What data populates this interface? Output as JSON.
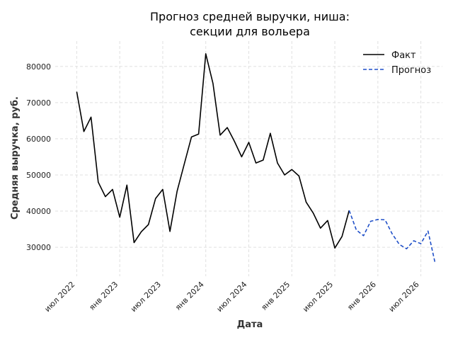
{
  "chart_data": {
    "type": "line",
    "title_lines": [
      "Прогноз средней выручки, ниша:",
      "секции для вольера"
    ],
    "xlabel": "Дата",
    "ylabel": "Средняя выручка, руб.",
    "x_ticks": [
      {
        "date": "2022-07-01",
        "label": "июл 2022"
      },
      {
        "date": "2023-01-01",
        "label": "янв 2023"
      },
      {
        "date": "2023-07-01",
        "label": "июл 2023"
      },
      {
        "date": "2024-01-01",
        "label": "янв 2024"
      },
      {
        "date": "2024-07-01",
        "label": "июл 2024"
      },
      {
        "date": "2025-01-01",
        "label": "янв 2025"
      },
      {
        "date": "2025-07-01",
        "label": "июл 2025"
      },
      {
        "date": "2026-01-01",
        "label": "янв 2026"
      },
      {
        "date": "2026-07-01",
        "label": "июл 2026"
      }
    ],
    "y_ticks": [
      {
        "value": 30000,
        "label": "30000"
      },
      {
        "value": 40000,
        "label": "40000"
      },
      {
        "value": 50000,
        "label": "50000"
      },
      {
        "value": 60000,
        "label": "60000"
      },
      {
        "value": 70000,
        "label": "70000"
      },
      {
        "value": 80000,
        "label": "80000"
      }
    ],
    "xlim": [
      "2022-04-01",
      "2026-10-01"
    ],
    "ylim": [
      22000,
      87000
    ],
    "grid": true,
    "legend_position": "top-right",
    "series": [
      {
        "name": "Факт",
        "color": "#000000",
        "style": "solid",
        "points": [
          {
            "x": "2022-07-01",
            "y": 73000
          },
          {
            "x": "2022-08-01",
            "y": 62000
          },
          {
            "x": "2022-09-01",
            "y": 66000
          },
          {
            "x": "2022-10-01",
            "y": 48000
          },
          {
            "x": "2022-11-01",
            "y": 44000
          },
          {
            "x": "2022-12-01",
            "y": 46000
          },
          {
            "x": "2023-01-01",
            "y": 38300
          },
          {
            "x": "2023-02-01",
            "y": 47200
          },
          {
            "x": "2023-03-01",
            "y": 31300
          },
          {
            "x": "2023-04-01",
            "y": 34300
          },
          {
            "x": "2023-05-01",
            "y": 36300
          },
          {
            "x": "2023-06-01",
            "y": 43500
          },
          {
            "x": "2023-07-01",
            "y": 46000
          },
          {
            "x": "2023-08-01",
            "y": 34400
          },
          {
            "x": "2023-09-01",
            "y": 45500
          },
          {
            "x": "2023-10-01",
            "y": 53000
          },
          {
            "x": "2023-11-01",
            "y": 60500
          },
          {
            "x": "2023-12-01",
            "y": 61300
          },
          {
            "x": "2024-01-01",
            "y": 83500
          },
          {
            "x": "2024-02-01",
            "y": 75300
          },
          {
            "x": "2024-03-01",
            "y": 61000
          },
          {
            "x": "2024-04-01",
            "y": 63100
          },
          {
            "x": "2024-05-01",
            "y": 59300
          },
          {
            "x": "2024-06-01",
            "y": 55000
          },
          {
            "x": "2024-07-01",
            "y": 59000
          },
          {
            "x": "2024-08-01",
            "y": 53300
          },
          {
            "x": "2024-09-01",
            "y": 54100
          },
          {
            "x": "2024-10-01",
            "y": 61500
          },
          {
            "x": "2024-11-01",
            "y": 53300
          },
          {
            "x": "2024-12-01",
            "y": 50000
          },
          {
            "x": "2025-01-01",
            "y": 51500
          },
          {
            "x": "2025-02-01",
            "y": 49700
          },
          {
            "x": "2025-03-01",
            "y": 42500
          },
          {
            "x": "2025-04-01",
            "y": 39400
          },
          {
            "x": "2025-05-01",
            "y": 35300
          },
          {
            "x": "2025-06-01",
            "y": 37400
          },
          {
            "x": "2025-07-01",
            "y": 29800
          },
          {
            "x": "2025-08-01",
            "y": 33000
          },
          {
            "x": "2025-09-01",
            "y": 40200
          }
        ]
      },
      {
        "name": "Прогноз",
        "color": "#1f4fc8",
        "style": "dashed",
        "points": [
          {
            "x": "2025-09-01",
            "y": 40200
          },
          {
            "x": "2025-10-01",
            "y": 34800
          },
          {
            "x": "2025-11-01",
            "y": 33200
          },
          {
            "x": "2025-12-01",
            "y": 37200
          },
          {
            "x": "2026-01-01",
            "y": 37700
          },
          {
            "x": "2026-02-01",
            "y": 37600
          },
          {
            "x": "2026-03-01",
            "y": 33700
          },
          {
            "x": "2026-04-01",
            "y": 30800
          },
          {
            "x": "2026-05-01",
            "y": 29600
          },
          {
            "x": "2026-06-01",
            "y": 31800
          },
          {
            "x": "2026-07-01",
            "y": 31000
          },
          {
            "x": "2026-08-01",
            "y": 34500
          },
          {
            "x": "2026-09-01",
            "y": 25500
          }
        ]
      }
    ]
  }
}
